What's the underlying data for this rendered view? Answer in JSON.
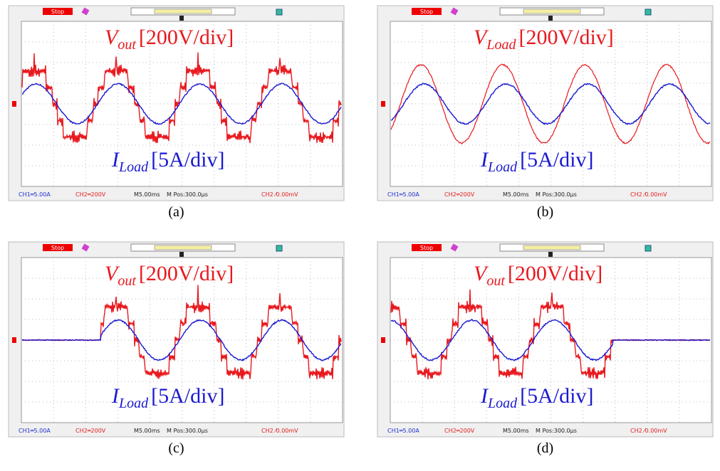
{
  "panels": [
    {
      "caption": "(a)",
      "status": "Stop",
      "ch1": "CH1═5.00A",
      "ch2": "CH2═200V",
      "timebase": "M5.00ms",
      "position": "M Pos:300.0µs",
      "trigger": "CH2 ⁄0.00mV",
      "voltage_label": {
        "symbol": "V",
        "subscript": "out",
        "scale": "[200V/div]"
      },
      "current_label": {
        "symbol": "I",
        "subscript": "Load",
        "scale": "[5A/div]"
      }
    },
    {
      "caption": "(b)",
      "status": "Stop",
      "ch1": "CH1═5.00A",
      "ch2": "CH2═200V",
      "timebase": "M5.00ms",
      "position": "M Pos:300.0µs",
      "trigger": "CH2 ⁄0.00mV",
      "voltage_label": {
        "symbol": "V",
        "subscript": "Load",
        "scale": "[200V/div]"
      },
      "current_label": {
        "symbol": "I",
        "subscript": "Load",
        "scale": "[5A/div]"
      }
    },
    {
      "caption": "(c)",
      "status": "Stop",
      "ch1": "CH1═5.00A",
      "ch2": "CH2═200V",
      "timebase": "M5.00ms",
      "position": "M Pos:300.0µs",
      "trigger": "CH2 ⁄0.00mV",
      "voltage_label": {
        "symbol": "V",
        "subscript": "out",
        "scale": "[200V/div]"
      },
      "current_label": {
        "symbol": "I",
        "subscript": "Load",
        "scale": "[5A/div]"
      }
    },
    {
      "caption": "(d)",
      "status": "Stop",
      "ch1": "CH1═5.00A",
      "ch2": "CH2═200V",
      "timebase": "M5.00ms",
      "position": "M Pos:300.0µs",
      "trigger": "CH2 ⁄0.00mV",
      "voltage_label": {
        "symbol": "V",
        "subscript": "out",
        "scale": "[200V/div]"
      },
      "current_label": {
        "symbol": "I",
        "subscript": "Load",
        "scale": "[5A/div]"
      }
    }
  ]
}
